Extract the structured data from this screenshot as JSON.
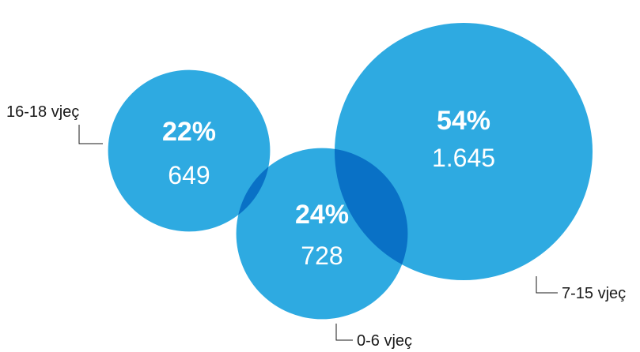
{
  "chart_data": {
    "type": "bubble",
    "color": "#2eaae1",
    "label_color": "#1a1a1a",
    "items": [
      {
        "category": "16-18 vjeç",
        "percent": 22,
        "percent_label": "22%",
        "count": 649,
        "count_label": "649"
      },
      {
        "category": "0-6 vjeç",
        "percent": 24,
        "percent_label": "24%",
        "count": 728,
        "count_label": "728"
      },
      {
        "category": "7-15 vjeç",
        "percent": 54,
        "percent_label": "54%",
        "count": 1645,
        "count_label": "1.645"
      }
    ]
  }
}
